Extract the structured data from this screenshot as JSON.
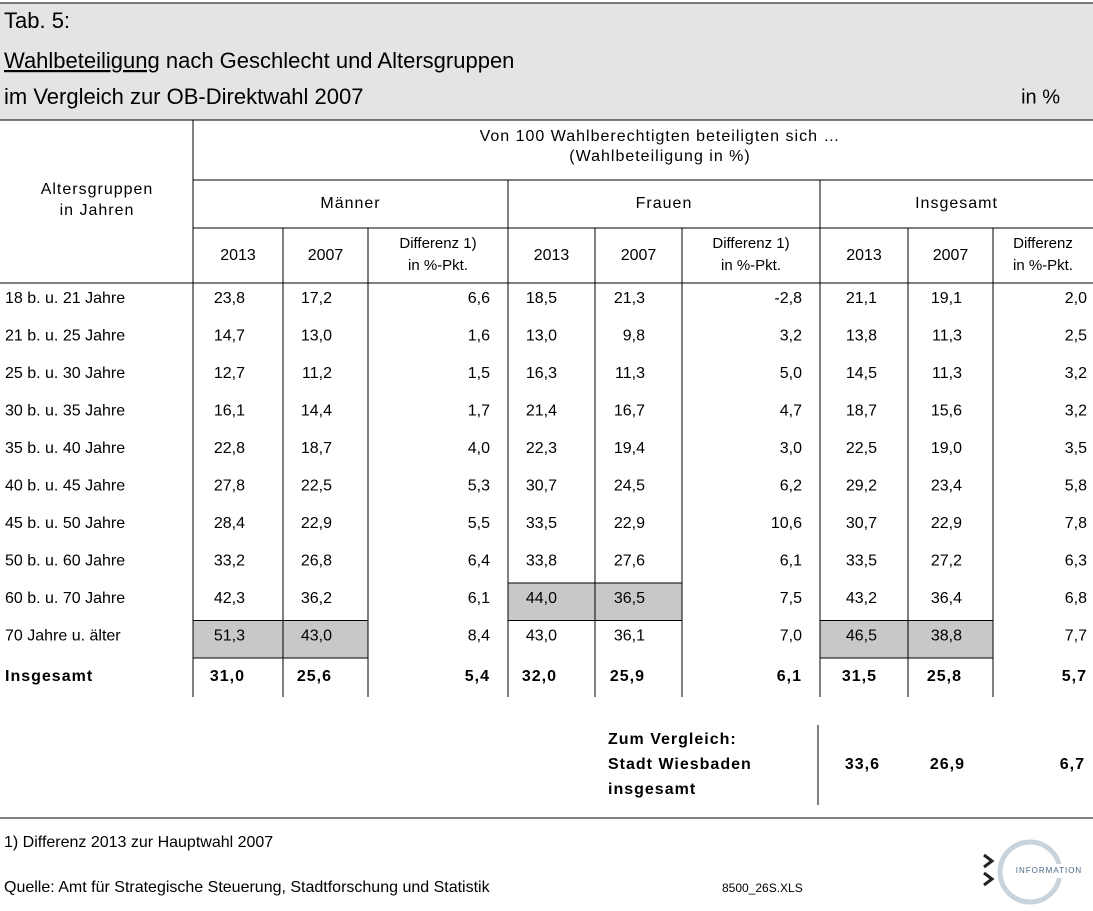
{
  "header": {
    "title_line1": "Tab. 5:",
    "title_line2_underlined": "Wahlbeteiligung",
    "title_line2_rest": " nach Geschlecht und Altersgruppen",
    "title_line3": "im Vergleich zur OB-Direktwahl 2007",
    "unit": "in %"
  },
  "table": {
    "super_header": [
      "Von 100 Wahlberechtigten beteiligten sich …",
      "(Wahlbeteiligung in %)"
    ],
    "row_header": [
      "Altersgruppen",
      "in Jahren"
    ],
    "groups": [
      {
        "name": "Männer",
        "columns": [
          [
            "2013"
          ],
          [
            "2007"
          ],
          [
            "Differenz 1)",
            "in %-Pkt."
          ]
        ]
      },
      {
        "name": "Frauen",
        "columns": [
          [
            "2013"
          ],
          [
            "2007"
          ],
          [
            "Differenz 1)",
            "in %-Pkt."
          ]
        ]
      },
      {
        "name": "Insgesamt",
        "columns": [
          [
            "2013"
          ],
          [
            "2007"
          ],
          [
            "Differenz",
            "in %-Pkt."
          ]
        ]
      }
    ],
    "rows": [
      [
        "18 b. u. 21 Jahre",
        "23,8",
        "17,2",
        "6,6",
        "18,5",
        "21,3",
        "-2,8",
        "21,1",
        "19,1",
        "2,0"
      ],
      [
        "21 b. u. 25 Jahre",
        "14,7",
        "13,0",
        "1,6",
        "13,0",
        "9,8",
        "3,2",
        "13,8",
        "11,3",
        "2,5"
      ],
      [
        "25 b. u. 30 Jahre",
        "12,7",
        "11,2",
        "1,5",
        "16,3",
        "11,3",
        "5,0",
        "14,5",
        "11,3",
        "3,2"
      ],
      [
        "30 b. u. 35 Jahre",
        "16,1",
        "14,4",
        "1,7",
        "21,4",
        "16,7",
        "4,7",
        "18,7",
        "15,6",
        "3,2"
      ],
      [
        "35 b. u. 40 Jahre",
        "22,8",
        "18,7",
        "4,0",
        "22,3",
        "19,4",
        "3,0",
        "22,5",
        "19,0",
        "3,5"
      ],
      [
        "40 b. u. 45 Jahre",
        "27,8",
        "22,5",
        "5,3",
        "30,7",
        "24,5",
        "6,2",
        "29,2",
        "23,4",
        "5,8"
      ],
      [
        "45 b. u. 50 Jahre",
        "28,4",
        "22,9",
        "5,5",
        "33,5",
        "22,9",
        "10,6",
        "30,7",
        "22,9",
        "7,8"
      ],
      [
        "50 b. u. 60 Jahre",
        "33,2",
        "26,8",
        "6,4",
        "33,8",
        "27,6",
        "6,1",
        "33,5",
        "27,2",
        "6,3"
      ],
      [
        "60 b. u. 70 Jahre",
        "42,3",
        "36,2",
        "6,1",
        "44,0",
        "36,5",
        "7,5",
        "43,2",
        "36,4",
        "6,8"
      ],
      [
        "70  Jahre u. älter",
        "51,3",
        "43,0",
        "8,4",
        "43,0",
        "36,1",
        "7,0",
        "46,5",
        "38,8",
        "7,7"
      ]
    ],
    "total_row": [
      "Insgesamt",
      "31,0",
      "25,6",
      "5,4",
      "32,0",
      "25,9",
      "6,1",
      "31,5",
      "25,8",
      "5,7"
    ],
    "highlighted_cells": [
      [
        8,
        4
      ],
      [
        8,
        5
      ],
      [
        9,
        1
      ],
      [
        9,
        2
      ],
      [
        9,
        7
      ],
      [
        9,
        8
      ]
    ]
  },
  "comparison": {
    "label": [
      "Zum Vergleich:",
      "Stadt Wiesbaden",
      "insgesamt"
    ],
    "values": [
      "33,6",
      "26,9",
      "6,7"
    ]
  },
  "footer": {
    "footnote": "1) Differenz 2013 zur Hauptwahl 2007",
    "source": "Quelle: Amt für Strategische Steuerung, Stadtforschung und Statistik",
    "file": "8500_26S.XLS",
    "logo_text": "INFORMATION"
  }
}
